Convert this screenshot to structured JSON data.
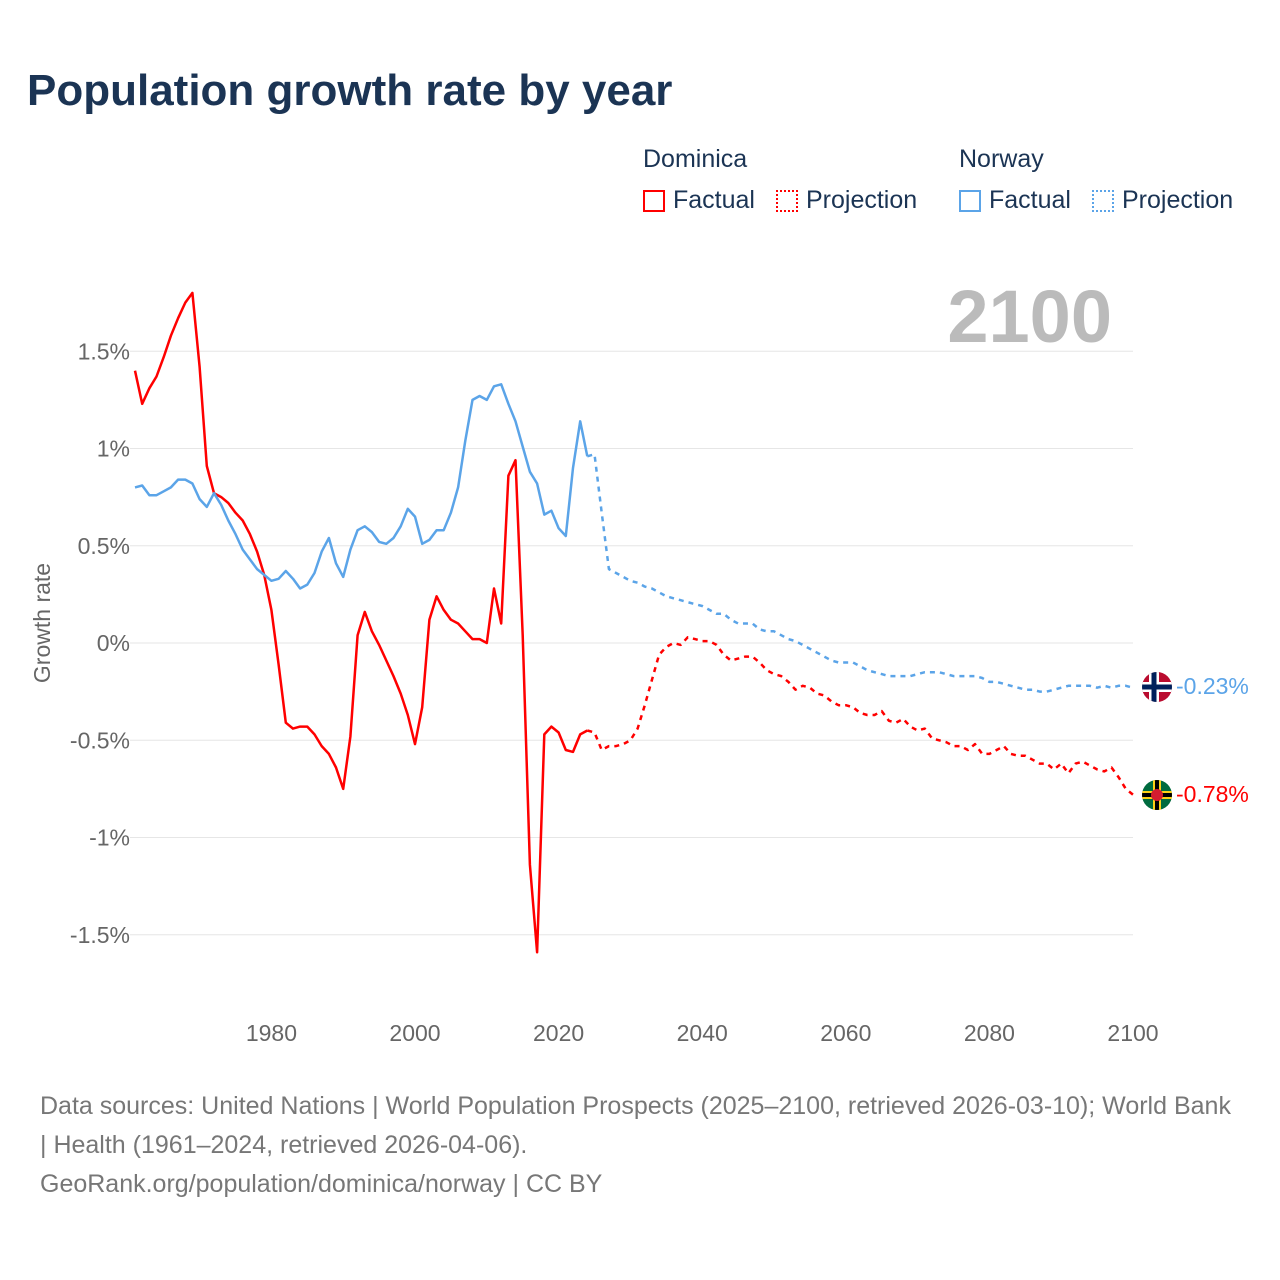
{
  "title": "Population growth rate by year",
  "legend": {
    "groups": [
      {
        "name": "Dominica",
        "color": "#ff0000",
        "factual": "Factual",
        "projection": "Projection"
      },
      {
        "name": "Norway",
        "color": "#5ba4e8",
        "factual": "Factual",
        "projection": "Projection"
      }
    ]
  },
  "year_display": "2100",
  "end_labels": {
    "norway": "-0.23%",
    "dominica": "-0.78%"
  },
  "source": {
    "line1": "Data sources: United Nations | World Population Prospects (2025–2100, retrieved 2026-03-10); World Bank | Health (1961–2024, retrieved 2026-04-06).",
    "line2": "GeoRank.org/population/dominica/norway | CC BY"
  },
  "chart_data": {
    "type": "line",
    "title": "Population growth rate by year",
    "xlabel": "",
    "ylabel": "Growth rate",
    "xlim": [
      1961,
      2100
    ],
    "ylim": [
      -1.75,
      1.85
    ],
    "x_ticks": [
      1980,
      2000,
      2020,
      2040,
      2060,
      2080,
      2100
    ],
    "x_tick_labels": [
      "1980",
      "2000",
      "2020",
      "2040",
      "2060",
      "2080",
      "2100"
    ],
    "y_ticks": [
      1.5,
      1,
      0.5,
      0,
      -0.5,
      -1,
      -1.5
    ],
    "y_tick_labels": [
      "1.5%",
      "1%",
      "0.5%",
      "0%",
      "-0.5%",
      "-1%",
      "-1.5%"
    ],
    "grid": true,
    "legend_position": "top-right",
    "series": [
      {
        "name": "Dominica Factual",
        "color": "#ff0000",
        "dashed": false,
        "start": 1961,
        "values": [
          1.4,
          1.23,
          1.31,
          1.37,
          1.47,
          1.58,
          1.67,
          1.75,
          1.8,
          1.42,
          0.91,
          0.77,
          0.75,
          0.72,
          0.67,
          0.63,
          0.56,
          0.47,
          0.35,
          0.17,
          -0.11,
          -0.41,
          -0.44,
          -0.43,
          -0.43,
          -0.47,
          -0.53,
          -0.57,
          -0.64,
          -0.75,
          -0.48,
          0.04,
          0.16,
          0.06,
          -0.01,
          -0.09,
          -0.17,
          -0.26,
          -0.37,
          -0.52,
          -0.33,
          0.12,
          0.24,
          0.17,
          0.12,
          0.1,
          0.06,
          0.02,
          0.02,
          0.0,
          0.28,
          0.1,
          0.86,
          0.94,
          0.04,
          -1.14,
          -1.59,
          -0.47,
          -0.43,
          -0.46,
          -0.55,
          -0.56,
          -0.47,
          -0.45
        ]
      },
      {
        "name": "Dominica Projection",
        "color": "#ff0000",
        "dashed": true,
        "start": 2024,
        "values": [
          -0.45,
          -0.46,
          -0.55,
          -0.53,
          -0.53,
          -0.52,
          -0.5,
          -0.44,
          -0.32,
          -0.19,
          -0.06,
          -0.02,
          0.0,
          -0.01,
          0.03,
          0.02,
          0.01,
          0.01,
          -0.01,
          -0.06,
          -0.09,
          -0.08,
          -0.07,
          -0.07,
          -0.1,
          -0.14,
          -0.16,
          -0.17,
          -0.2,
          -0.24,
          -0.22,
          -0.23,
          -0.26,
          -0.27,
          -0.3,
          -0.32,
          -0.32,
          -0.33,
          -0.36,
          -0.37,
          -0.37,
          -0.35,
          -0.4,
          -0.41,
          -0.39,
          -0.43,
          -0.45,
          -0.44,
          -0.49,
          -0.5,
          -0.51,
          -0.53,
          -0.53,
          -0.55,
          -0.52,
          -0.57,
          -0.57,
          -0.55,
          -0.53,
          -0.57,
          -0.58,
          -0.58,
          -0.6,
          -0.62,
          -0.62,
          -0.65,
          -0.62,
          -0.67,
          -0.62,
          -0.61,
          -0.63,
          -0.65,
          -0.66,
          -0.64,
          -0.69,
          -0.75,
          -0.78
        ]
      },
      {
        "name": "Norway Factual",
        "color": "#5ba4e8",
        "dashed": false,
        "start": 1961,
        "values": [
          0.8,
          0.81,
          0.76,
          0.76,
          0.78,
          0.8,
          0.84,
          0.84,
          0.82,
          0.74,
          0.7,
          0.77,
          0.71,
          0.63,
          0.56,
          0.48,
          0.43,
          0.38,
          0.35,
          0.32,
          0.33,
          0.37,
          0.33,
          0.28,
          0.3,
          0.36,
          0.47,
          0.54,
          0.41,
          0.34,
          0.48,
          0.58,
          0.6,
          0.57,
          0.52,
          0.51,
          0.54,
          0.6,
          0.69,
          0.65,
          0.51,
          0.53,
          0.58,
          0.58,
          0.67,
          0.8,
          1.04,
          1.25,
          1.27,
          1.25,
          1.32,
          1.33,
          1.23,
          1.14,
          1.01,
          0.88,
          0.82,
          0.66,
          0.68,
          0.59,
          0.55,
          0.9,
          1.14,
          0.96
        ]
      },
      {
        "name": "Norway Projection",
        "color": "#5ba4e8",
        "dashed": true,
        "start": 2024,
        "values": [
          0.96,
          0.97,
          0.67,
          0.38,
          0.36,
          0.34,
          0.32,
          0.31,
          0.29,
          0.28,
          0.26,
          0.24,
          0.23,
          0.22,
          0.21,
          0.2,
          0.19,
          0.17,
          0.15,
          0.15,
          0.12,
          0.1,
          0.1,
          0.1,
          0.07,
          0.06,
          0.06,
          0.04,
          0.02,
          0.01,
          -0.01,
          -0.03,
          -0.05,
          -0.07,
          -0.09,
          -0.1,
          -0.1,
          -0.1,
          -0.12,
          -0.14,
          -0.15,
          -0.16,
          -0.17,
          -0.17,
          -0.17,
          -0.17,
          -0.16,
          -0.15,
          -0.15,
          -0.15,
          -0.16,
          -0.17,
          -0.17,
          -0.17,
          -0.17,
          -0.18,
          -0.2,
          -0.2,
          -0.21,
          -0.22,
          -0.23,
          -0.24,
          -0.24,
          -0.25,
          -0.25,
          -0.24,
          -0.23,
          -0.22,
          -0.22,
          -0.22,
          -0.22,
          -0.23,
          -0.22,
          -0.23,
          -0.22,
          -0.22,
          -0.23
        ]
      }
    ]
  }
}
